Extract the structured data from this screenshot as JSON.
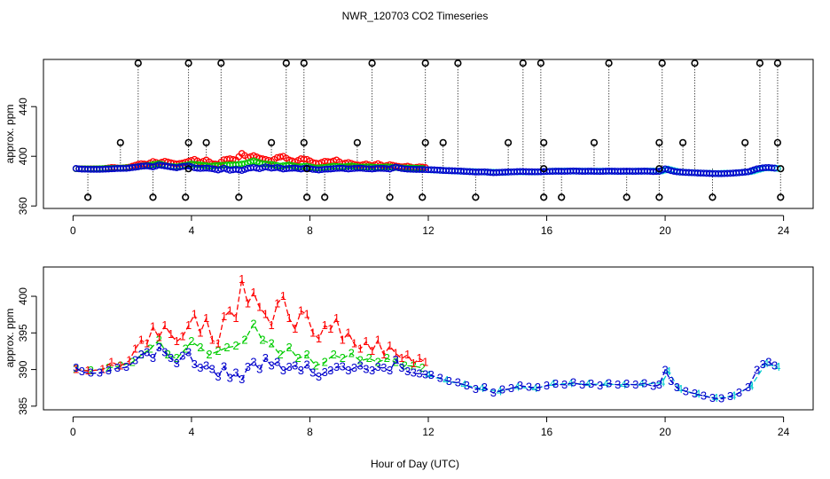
{
  "title": "NWR_120703  CO2 Timeseries",
  "xlabel": "Hour of Day (UTC)",
  "colors": {
    "s1": "#ff0000",
    "s2": "#00cc00",
    "s3": "#0000cc",
    "s4": "#00cccc",
    "flag": "#000000"
  },
  "chart_data": [
    {
      "type": "scatter",
      "ylabel": "approx. ppm",
      "xlim": [
        -1,
        25
      ],
      "ylim": [
        358,
        478
      ],
      "xticks": [
        0,
        4,
        8,
        12,
        16,
        20,
        24
      ],
      "yticks": [
        360,
        400,
        440
      ],
      "flag_low": 367,
      "flag_mid": 411,
      "flag_high": 475,
      "flag_base": 390,
      "flag_low_hours": [
        0.5,
        2.7,
        3.8,
        5.6,
        7.9,
        8.5,
        10.7,
        11.8,
        13.6,
        15.9,
        16.5,
        18.7,
        19.8,
        21.6,
        23.9
      ],
      "flag_mid_hours": [
        1.6,
        3.9,
        4.5,
        6.7,
        7.8,
        9.6,
        11.9,
        12.5,
        14.7,
        15.9,
        17.6,
        19.8,
        20.6,
        22.7,
        23.8
      ],
      "flag_high_hours": [
        2.2,
        3.9,
        5.0,
        7.2,
        7.8,
        10.1,
        11.9,
        13.0,
        15.2,
        15.8,
        18.1,
        19.9,
        21.0,
        23.2,
        23.8
      ],
      "base_hours": [
        3.9,
        7.9,
        15.9,
        19.8,
        23.9
      ],
      "series_names": [
        "1",
        "2",
        "3",
        "4"
      ],
      "series_source": "panel2"
    },
    {
      "type": "line",
      "ylabel": "approx. ppm",
      "xlim": [
        -1,
        25
      ],
      "ylim": [
        384.5,
        404
      ],
      "xticks": [
        0,
        4,
        8,
        12,
        16,
        20,
        24
      ],
      "yticks": [
        385,
        390,
        395,
        400
      ],
      "series": [
        {
          "name": "1",
          "points": [
            [
              0.1,
              390
            ],
            [
              0.5,
              389.8
            ],
            [
              1.0,
              390
            ],
            [
              1.3,
              391
            ],
            [
              1.6,
              390.5
            ],
            [
              1.9,
              391.2
            ],
            [
              2.1,
              392.8
            ],
            [
              2.3,
              394
            ],
            [
              2.5,
              393.5
            ],
            [
              2.7,
              395.8
            ],
            [
              2.9,
              394.4
            ],
            [
              3.1,
              396
            ],
            [
              3.3,
              394.8
            ],
            [
              3.5,
              393.8
            ],
            [
              3.7,
              394.5
            ],
            [
              3.9,
              396
            ],
            [
              4.1,
              397.5
            ],
            [
              4.3,
              395
            ],
            [
              4.5,
              397
            ],
            [
              4.7,
              394
            ],
            [
              4.9,
              393.5
            ],
            [
              5.1,
              397.2
            ],
            [
              5.3,
              398
            ],
            [
              5.5,
              397
            ],
            [
              5.7,
              402.3
            ],
            [
              5.9,
              399
            ],
            [
              6.1,
              400.5
            ],
            [
              6.3,
              398.5
            ],
            [
              6.5,
              397.5
            ],
            [
              6.7,
              396
            ],
            [
              6.9,
              399
            ],
            [
              7.1,
              400
            ],
            [
              7.3,
              397
            ],
            [
              7.5,
              395.5
            ],
            [
              7.7,
              398
            ],
            [
              7.9,
              397.5
            ],
            [
              8.1,
              395
            ],
            [
              8.3,
              394.2
            ],
            [
              8.5,
              396
            ],
            [
              8.7,
              395.5
            ],
            [
              8.9,
              397
            ],
            [
              9.1,
              394
            ],
            [
              9.3,
              395
            ],
            [
              9.5,
              393.5
            ],
            [
              9.7,
              392.8
            ],
            [
              9.9,
              393.8
            ],
            [
              10.1,
              392.5
            ],
            [
              10.3,
              394
            ],
            [
              10.5,
              392
            ],
            [
              10.7,
              393.2
            ],
            [
              10.9,
              392.2
            ],
            [
              11.1,
              391.5
            ],
            [
              11.3,
              392
            ],
            [
              11.5,
              390.8
            ],
            [
              11.7,
              391.5
            ],
            [
              11.9,
              391
            ]
          ]
        },
        {
          "name": "2",
          "points": [
            [
              0.1,
              390
            ],
            [
              0.6,
              389.8
            ],
            [
              1.2,
              390.2
            ],
            [
              1.6,
              390.5
            ],
            [
              2.0,
              391
            ],
            [
              2.3,
              392
            ],
            [
              2.6,
              392.8
            ],
            [
              2.9,
              394
            ],
            [
              3.2,
              392
            ],
            [
              3.5,
              391.5
            ],
            [
              3.8,
              392.8
            ],
            [
              4.0,
              393.8
            ],
            [
              4.3,
              393
            ],
            [
              4.6,
              392
            ],
            [
              4.9,
              392.5
            ],
            [
              5.2,
              393
            ],
            [
              5.5,
              393.2
            ],
            [
              5.8,
              394
            ],
            [
              6.1,
              396.2
            ],
            [
              6.4,
              394
            ],
            [
              6.7,
              393.5
            ],
            [
              7.0,
              392
            ],
            [
              7.3,
              393
            ],
            [
              7.6,
              391.5
            ],
            [
              7.9,
              392
            ],
            [
              8.2,
              390.5
            ],
            [
              8.5,
              391
            ],
            [
              8.8,
              392
            ],
            [
              9.1,
              391.5
            ],
            [
              9.4,
              392.2
            ],
            [
              9.7,
              391.2
            ],
            [
              10.0,
              391.5
            ],
            [
              10.3,
              391
            ],
            [
              10.6,
              391.5
            ],
            [
              10.9,
              391
            ],
            [
              11.2,
              390.5
            ],
            [
              11.5,
              390.5
            ],
            [
              11.8,
              390.2
            ]
          ]
        },
        {
          "name": "3",
          "points": [
            [
              0.1,
              390.2
            ],
            [
              0.3,
              389.7
            ],
            [
              0.6,
              389.5
            ],
            [
              0.9,
              389.5
            ],
            [
              1.2,
              389.8
            ],
            [
              1.5,
              390.2
            ],
            [
              1.8,
              390.3
            ],
            [
              2.1,
              391.2
            ],
            [
              2.3,
              392
            ],
            [
              2.5,
              392.3
            ],
            [
              2.7,
              391.5
            ],
            [
              2.9,
              393
            ],
            [
              3.1,
              392.3
            ],
            [
              3.3,
              391.5
            ],
            [
              3.5,
              390.8
            ],
            [
              3.7,
              391.8
            ],
            [
              3.9,
              392.3
            ],
            [
              4.1,
              390.7
            ],
            [
              4.3,
              390.2
            ],
            [
              4.5,
              390.5
            ],
            [
              4.7,
              390
            ],
            [
              4.9,
              389
            ],
            [
              5.1,
              390.4
            ],
            [
              5.3,
              388.8
            ],
            [
              5.5,
              389.5
            ],
            [
              5.7,
              388.6
            ],
            [
              5.9,
              390.3
            ],
            [
              6.1,
              391
            ],
            [
              6.3,
              390
            ],
            [
              6.5,
              391.5
            ],
            [
              6.7,
              390.5
            ],
            [
              6.9,
              391
            ],
            [
              7.1,
              389.8
            ],
            [
              7.3,
              390.3
            ],
            [
              7.5,
              390.5
            ],
            [
              7.7,
              389.8
            ],
            [
              7.9,
              390.6
            ],
            [
              8.1,
              389.5
            ],
            [
              8.3,
              389
            ],
            [
              8.5,
              389.6
            ],
            [
              8.7,
              389.8
            ],
            [
              8.9,
              390.3
            ],
            [
              9.1,
              390.4
            ],
            [
              9.3,
              389.8
            ],
            [
              9.5,
              390.2
            ],
            [
              9.7,
              390.5
            ],
            [
              9.9,
              390
            ],
            [
              10.1,
              389.8
            ],
            [
              10.3,
              390.3
            ],
            [
              10.5,
              390.2
            ],
            [
              10.7,
              389.8
            ],
            [
              10.9,
              391.3
            ],
            [
              11.1,
              390.2
            ],
            [
              11.3,
              389.7
            ],
            [
              11.5,
              389.5
            ],
            [
              11.7,
              389.4
            ],
            [
              11.9,
              389.3
            ],
            [
              12.1,
              389.2
            ],
            [
              12.4,
              388.8
            ],
            [
              12.7,
              388.4
            ],
            [
              13.0,
              388.2
            ],
            [
              13.3,
              387.8
            ],
            [
              13.6,
              387.3
            ],
            [
              13.9,
              387.5
            ],
            [
              14.2,
              386.8
            ],
            [
              14.5,
              387.2
            ],
            [
              14.8,
              387.4
            ],
            [
              15.1,
              387.8
            ],
            [
              15.4,
              387.6
            ],
            [
              15.7,
              387.5
            ],
            [
              16.0,
              387.8
            ],
            [
              16.3,
              388
            ],
            [
              16.6,
              387.9
            ],
            [
              16.9,
              388.2
            ],
            [
              17.2,
              387.9
            ],
            [
              17.5,
              388
            ],
            [
              17.8,
              387.8
            ],
            [
              18.1,
              388.1
            ],
            [
              18.4,
              387.9
            ],
            [
              18.7,
              388
            ],
            [
              19.0,
              387.9
            ],
            [
              19.3,
              388.1
            ],
            [
              19.6,
              387.7
            ],
            [
              19.8,
              387.9
            ],
            [
              20.0,
              389.9
            ],
            [
              20.2,
              388.4
            ],
            [
              20.4,
              387.5
            ],
            [
              20.7,
              387
            ],
            [
              21.0,
              386.7
            ],
            [
              21.3,
              386.4
            ],
            [
              21.6,
              386.1
            ],
            [
              21.9,
              386
            ],
            [
              22.2,
              386.3
            ],
            [
              22.5,
              386.8
            ],
            [
              22.8,
              387.5
            ],
            [
              23.1,
              389.9
            ],
            [
              23.3,
              390.7
            ],
            [
              23.5,
              391
            ],
            [
              23.7,
              390.5
            ]
          ]
        },
        {
          "name": "4",
          "points": [
            [
              12.0,
              389.2
            ],
            [
              12.6,
              388.5
            ],
            [
              13.2,
              387.9
            ],
            [
              13.8,
              387.4
            ],
            [
              14.4,
              387
            ],
            [
              15.0,
              387.6
            ],
            [
              15.6,
              387.4
            ],
            [
              16.2,
              388
            ],
            [
              16.8,
              388.1
            ],
            [
              17.4,
              388
            ],
            [
              18.0,
              388
            ],
            [
              18.6,
              387.9
            ],
            [
              19.2,
              388
            ],
            [
              19.9,
              388.2
            ],
            [
              20.1,
              389.7
            ],
            [
              20.5,
              387.3
            ],
            [
              21.1,
              386.6
            ],
            [
              21.7,
              386.1
            ],
            [
              22.3,
              386.4
            ],
            [
              22.9,
              387.7
            ],
            [
              23.4,
              390.8
            ],
            [
              23.8,
              390.3
            ]
          ]
        }
      ]
    }
  ]
}
